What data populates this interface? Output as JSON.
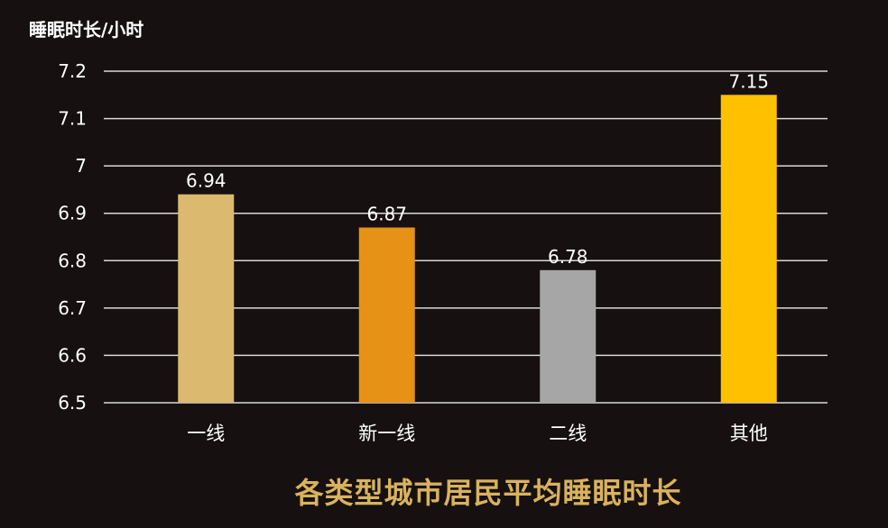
{
  "chart_data": {
    "type": "bar",
    "title": "各类型城市居民平均睡眠时长",
    "ylabel": "睡眠时长/小时",
    "xlabel": "",
    "categories": [
      "一线",
      "新一线",
      "二线",
      "其他"
    ],
    "values": [
      6.94,
      6.87,
      6.78,
      7.15
    ],
    "value_labels": [
      "6.94",
      "6.87",
      "6.78",
      "7.15"
    ],
    "colors": [
      "#DBB96F",
      "#E69216",
      "#A6A6A6",
      "#FFC000"
    ],
    "ylim": [
      6.5,
      7.2
    ],
    "yticks": [
      "6.5",
      "6.6",
      "6.7",
      "6.8",
      "6.9",
      "7",
      "7.1",
      "7.2"
    ],
    "grid": true,
    "legend": "none"
  }
}
